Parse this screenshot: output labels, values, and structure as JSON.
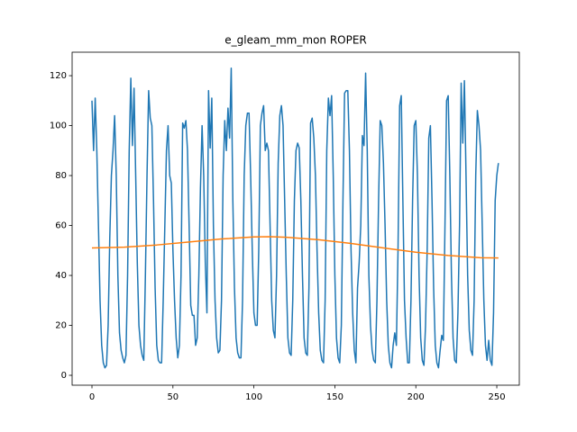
{
  "chart_data": {
    "type": "line",
    "title": "e_gleam_mm_mon ROPER",
    "xlim": [
      -12.25,
      263.9
    ],
    "ylim": [
      -3.96,
      129.4
    ],
    "xticks": [
      0,
      50,
      100,
      150,
      200,
      250
    ],
    "yticks": [
      0,
      20,
      40,
      60,
      80,
      100,
      120
    ],
    "series": [
      {
        "color": "#1f77b4",
        "x": [
          0,
          1,
          2,
          3,
          4,
          5,
          6,
          7,
          8,
          9,
          10,
          11,
          12,
          13,
          14,
          15,
          16,
          17,
          18,
          19,
          20,
          21,
          22,
          23,
          24,
          25,
          26,
          27,
          28,
          29,
          30,
          31,
          32,
          33,
          34,
          35,
          36,
          37,
          38,
          39,
          40,
          41,
          42,
          43,
          44,
          45,
          46,
          47,
          48,
          49,
          50,
          51,
          52,
          53,
          54,
          55,
          56,
          57,
          58,
          59,
          60,
          61,
          62,
          63,
          64,
          65,
          66,
          67,
          68,
          69,
          70,
          71,
          72,
          73,
          74,
          75,
          76,
          77,
          78,
          79,
          80,
          81,
          82,
          83,
          84,
          85,
          86,
          87,
          88,
          89,
          90,
          91,
          92,
          93,
          94,
          95,
          96,
          97,
          98,
          99,
          100,
          101,
          102,
          103,
          104,
          105,
          106,
          107,
          108,
          109,
          110,
          111,
          112,
          113,
          114,
          115,
          116,
          117,
          118,
          119,
          120,
          121,
          122,
          123,
          124,
          125,
          126,
          127,
          128,
          129,
          130,
          131,
          132,
          133,
          134,
          135,
          136,
          137,
          138,
          139,
          140,
          141,
          142,
          143,
          144,
          145,
          146,
          147,
          148,
          149,
          150,
          151,
          152,
          153,
          154,
          155,
          156,
          157,
          158,
          159,
          160,
          161,
          162,
          163,
          164,
          165,
          166,
          167,
          168,
          169,
          170,
          171,
          172,
          173,
          174,
          175,
          176,
          177,
          178,
          179,
          180,
          181,
          182,
          183,
          184,
          185,
          186,
          187,
          188,
          189,
          190,
          191,
          192,
          193,
          194,
          195,
          196,
          197,
          198,
          199,
          200,
          201,
          202,
          203,
          204,
          205,
          206,
          207,
          208,
          209,
          210,
          211,
          212,
          213,
          214,
          215,
          216,
          217,
          218,
          219,
          220,
          221,
          222,
          223,
          224,
          225,
          226,
          227,
          228,
          229,
          230,
          231,
          232,
          233,
          234,
          235,
          236,
          237,
          238,
          239,
          240,
          241,
          242,
          243,
          244,
          245,
          246,
          247,
          248,
          249,
          250,
          251
        ],
        "values": [
          110,
          90,
          111,
          90,
          60,
          30,
          12,
          5,
          3,
          4,
          20,
          55,
          80,
          90,
          104,
          80,
          40,
          17,
          10,
          7,
          5,
          8,
          40,
          90,
          119,
          92,
          115,
          80,
          45,
          20,
          12,
          8,
          6,
          40,
          80,
          114,
          103,
          100,
          70,
          35,
          12,
          6,
          5,
          5,
          30,
          60,
          90,
          100,
          80,
          77,
          50,
          30,
          15,
          7,
          12,
          40,
          101,
          99,
          102,
          90,
          60,
          28,
          24,
          24,
          12,
          15,
          40,
          75,
          100,
          80,
          45,
          25,
          114,
          91,
          111,
          60,
          30,
          15,
          9,
          10,
          30,
          80,
          102,
          90,
          107,
          95,
          123,
          70,
          35,
          15,
          9,
          7,
          7,
          30,
          80,
          100,
          105,
          105,
          80,
          50,
          25,
          20,
          20,
          50,
          100,
          105,
          108,
          90,
          93,
          90,
          60,
          30,
          18,
          15,
          40,
          85,
          104,
          108,
          100,
          70,
          40,
          15,
          9,
          8,
          30,
          70,
          90,
          93,
          91,
          70,
          40,
          15,
          9,
          8,
          35,
          101,
          103,
          95,
          80,
          50,
          25,
          10,
          6,
          5,
          30,
          90,
          111,
          104,
          112,
          80,
          40,
          15,
          7,
          5,
          20,
          70,
          113,
          114,
          114,
          90,
          50,
          25,
          10,
          5,
          35,
          45,
          60,
          96,
          92,
          121,
          90,
          40,
          20,
          10,
          6,
          5,
          30,
          70,
          102,
          100,
          85,
          60,
          30,
          12,
          5,
          3,
          12,
          17,
          12,
          50,
          108,
          112,
          70,
          30,
          15,
          5,
          5,
          30,
          70,
          100,
          102,
          80,
          40,
          15,
          6,
          4,
          20,
          50,
          95,
          100,
          70,
          35,
          12,
          5,
          3,
          10,
          16,
          14,
          60,
          110,
          112,
          80,
          40,
          15,
          6,
          5,
          25,
          60,
          117,
          93,
          118,
          80,
          40,
          18,
          10,
          8,
          30,
          80,
          106,
          100,
          90,
          60,
          30,
          12,
          6,
          14,
          6,
          4,
          25,
          70,
          80,
          85
        ]
      },
      {
        "color": "#ff7f0e",
        "x": [
          0,
          20,
          40,
          60,
          80,
          100,
          110,
          120,
          140,
          160,
          180,
          200,
          220,
          240,
          251
        ],
        "values": [
          51,
          51.3,
          52.2,
          53.4,
          54.6,
          55.4,
          55.5,
          55.3,
          54.3,
          52.8,
          51,
          49.3,
          48,
          47.1,
          47
        ]
      }
    ]
  }
}
